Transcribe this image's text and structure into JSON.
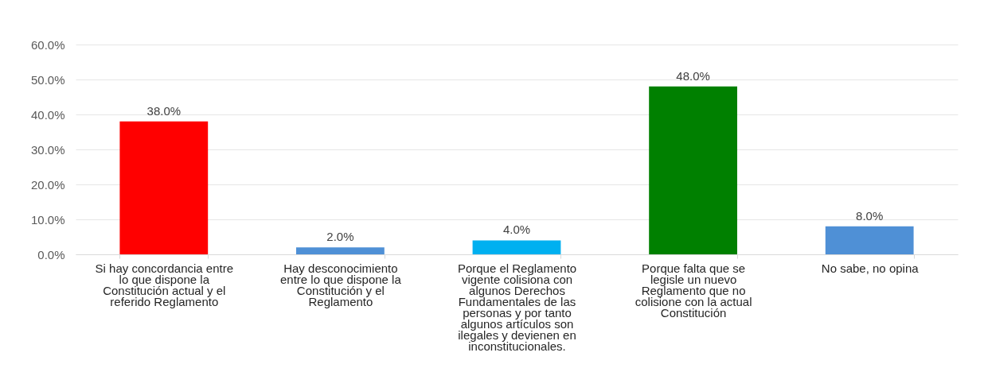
{
  "chart_data": {
    "type": "bar",
    "categories": [
      "Si hay concordancia entre lo que dispone la Constitución actual y el referido Reglamento",
      "Hay desconocimiento entre lo que dispone la Constitución y el Reglamento",
      "Porque el Reglamento vigente colisiona con algunos Derechos Fundamentales de las personas y por tanto algunos artículos son ilegales y devienen en inconstitucionales.",
      "Porque falta que se legisle un nuevo Reglamento que no colisione con la actual Constitución",
      "No sabe, no opina"
    ],
    "values": [
      38,
      2,
      4,
      48,
      8
    ],
    "colors": [
      "#ff0000",
      "#4f90d6",
      "#00b0f0",
      "#008000",
      "#4f90d6"
    ],
    "value_labels": [
      "38.0%",
      "2.0%",
      "4.0%",
      "48.0%",
      "8.0%"
    ],
    "ylim": [
      0,
      60
    ],
    "yticks": [
      {
        "value": 0,
        "label": "0.0%"
      },
      {
        "value": 10,
        "label": "10.0%"
      },
      {
        "value": 20,
        "label": "20.0%"
      },
      {
        "value": 30,
        "label": "30.0%"
      },
      {
        "value": 40,
        "label": "40.0%"
      },
      {
        "value": 50,
        "label": "50.0%"
      },
      {
        "value": 60,
        "label": "60.0%"
      }
    ],
    "grid": "y"
  }
}
